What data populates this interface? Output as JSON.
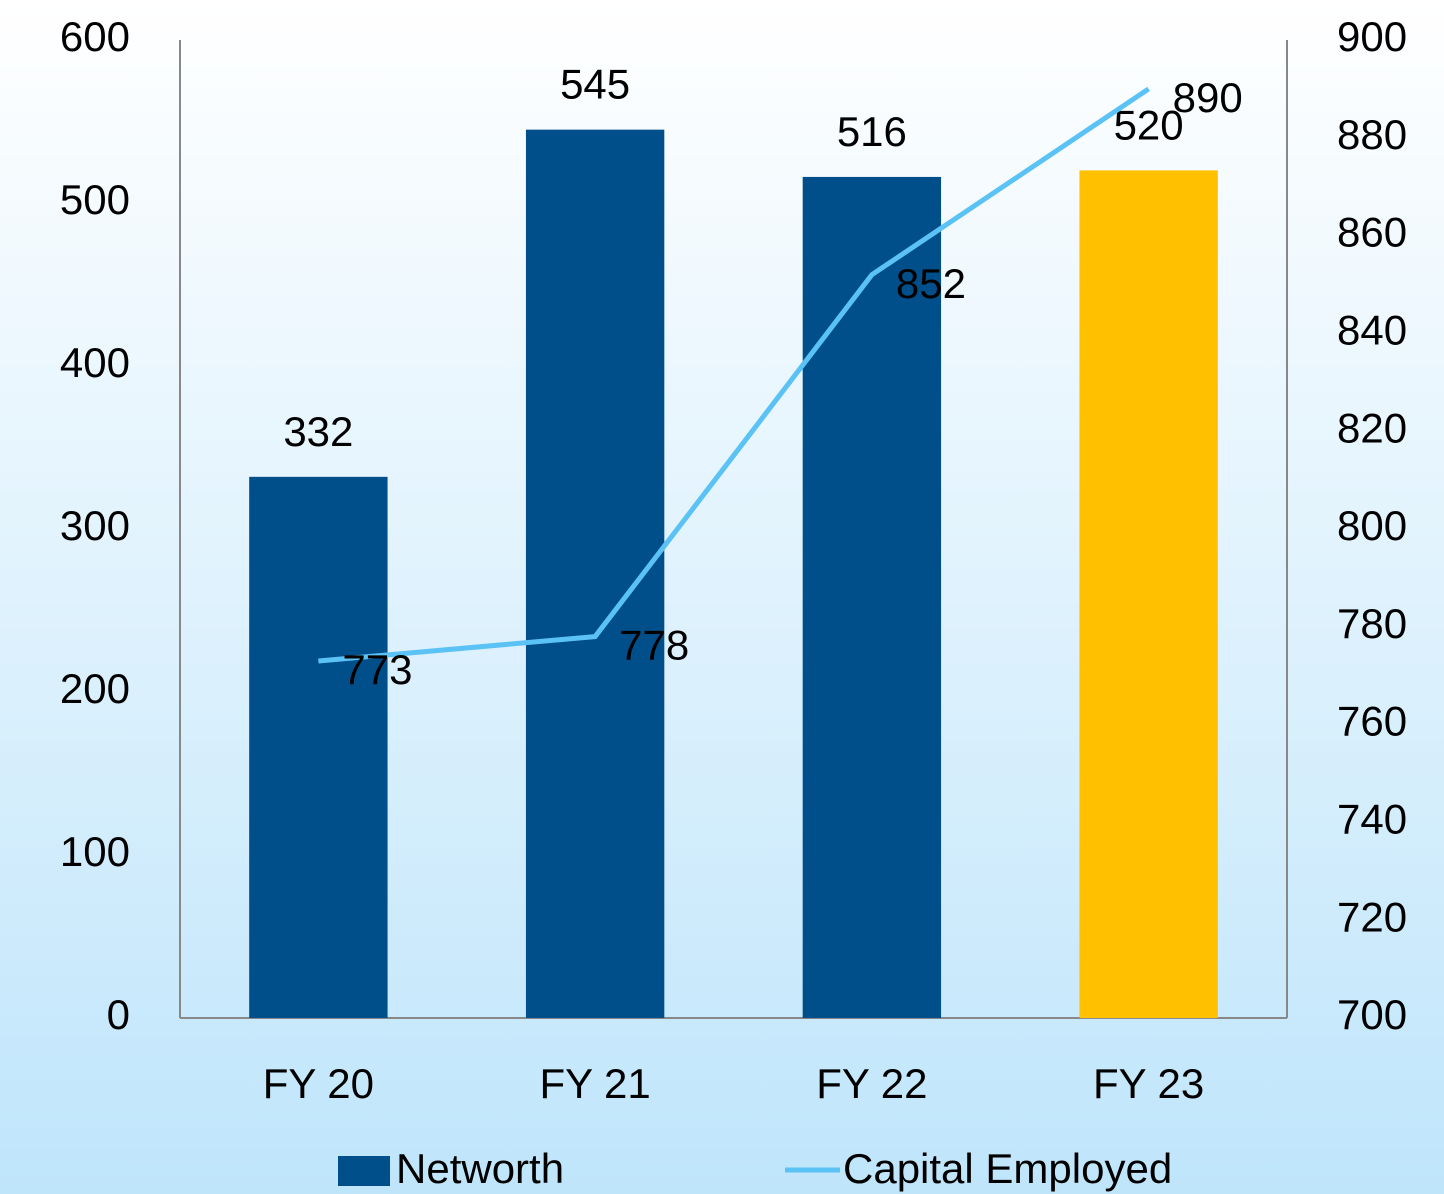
{
  "chart_data": {
    "type": "bar",
    "categories": [
      "FY 20",
      "FY 21",
      "FY 22",
      "FY 23"
    ],
    "series": [
      {
        "name": "Networth",
        "type": "bar",
        "values": [
          332,
          545,
          516,
          520
        ],
        "color": "#004f8b",
        "colors": [
          "#004f8b",
          "#004f8b",
          "#004f8b",
          "#ffc000"
        ]
      },
      {
        "name": "Capital Employed",
        "type": "line",
        "axis": "y2",
        "color": "#5bc2f5",
        "values": [
          773,
          778,
          852,
          890
        ]
      }
    ],
    "ylim": [
      0,
      600
    ],
    "yticks": [
      0,
      100,
      200,
      300,
      400,
      500,
      600
    ],
    "y2lim": [
      700,
      900
    ],
    "y2ticks": [
      700,
      720,
      740,
      760,
      780,
      800,
      820,
      840,
      860,
      880,
      900
    ],
    "grid": false,
    "legend": "bottom"
  }
}
